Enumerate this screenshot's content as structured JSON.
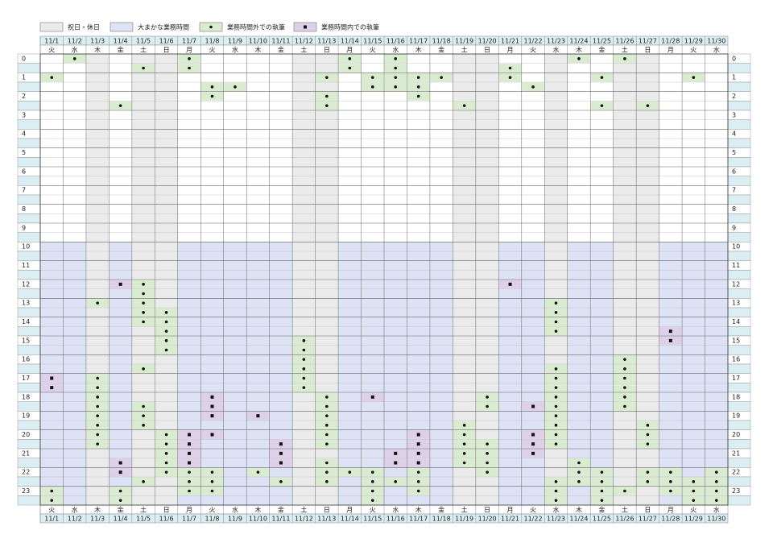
{
  "legend": {
    "holiday": "祝日・休日",
    "work_hours": "大まかな業務時間",
    "outside": "業務時間外での執筆",
    "inside": "業務時間内での執筆"
  },
  "work_hours": [
    10,
    24
  ],
  "hours": [
    0,
    1,
    2,
    3,
    4,
    5,
    6,
    7,
    8,
    9,
    10,
    11,
    12,
    13,
    14,
    15,
    16,
    17,
    18,
    19,
    20,
    21,
    22,
    23
  ],
  "days": [
    {
      "date": "11/1",
      "weekday": "火",
      "holiday": false,
      "outside": [
        1,
        23,
        23.5
      ],
      "inside": [
        17,
        17.5
      ]
    },
    {
      "date": "11/2",
      "weekday": "水",
      "holiday": false,
      "outside": [
        0
      ],
      "inside": []
    },
    {
      "date": "11/3",
      "weekday": "木",
      "holiday": true,
      "outside": [
        13,
        17,
        17.5,
        18,
        18.5,
        19,
        19.5,
        20,
        20.5
      ],
      "inside": []
    },
    {
      "date": "11/4",
      "weekday": "金",
      "holiday": false,
      "outside": [
        2.5,
        23,
        23.5
      ],
      "inside": [
        12,
        21.5,
        22
      ]
    },
    {
      "date": "11/5",
      "weekday": "土",
      "holiday": true,
      "outside": [
        0.5,
        12,
        12.5,
        13,
        13.5,
        14,
        16.5,
        18.5,
        19,
        19.5,
        22.5
      ],
      "inside": []
    },
    {
      "date": "11/6",
      "weekday": "日",
      "holiday": true,
      "outside": [
        13.5,
        14,
        14.5,
        15,
        15.5,
        20,
        20.5,
        21,
        21.5,
        22
      ],
      "inside": []
    },
    {
      "date": "11/7",
      "weekday": "月",
      "holiday": false,
      "outside": [
        0,
        0.5,
        22,
        22.5,
        23
      ],
      "inside": [
        20,
        20.5,
        21,
        21.5
      ]
    },
    {
      "date": "11/8",
      "weekday": "火",
      "holiday": false,
      "outside": [
        1.5,
        2,
        22,
        22.5,
        23
      ],
      "inside": [
        18,
        18.5,
        19,
        20
      ]
    },
    {
      "date": "11/9",
      "weekday": "水",
      "holiday": false,
      "outside": [
        1.5
      ],
      "inside": []
    },
    {
      "date": "11/10",
      "weekday": "木",
      "holiday": false,
      "outside": [
        22
      ],
      "inside": [
        19
      ]
    },
    {
      "date": "11/11",
      "weekday": "金",
      "holiday": false,
      "outside": [
        22.5
      ],
      "inside": [
        20.5,
        21,
        21.5
      ]
    },
    {
      "date": "11/12",
      "weekday": "土",
      "holiday": true,
      "outside": [
        15,
        15.5,
        16,
        16.5,
        17,
        17.5
      ],
      "inside": []
    },
    {
      "date": "11/13",
      "weekday": "日",
      "holiday": true,
      "outside": [
        1,
        2,
        2.5,
        18,
        18.5,
        19,
        19.5,
        20,
        20.5,
        21.5,
        22,
        22.5
      ],
      "inside": []
    },
    {
      "date": "11/14",
      "weekday": "月",
      "holiday": false,
      "outside": [
        0,
        0.5,
        22
      ],
      "inside": []
    },
    {
      "date": "11/15",
      "weekday": "火",
      "holiday": false,
      "outside": [
        1,
        1.5,
        22,
        22.5,
        23,
        23.5
      ],
      "inside": [
        18
      ]
    },
    {
      "date": "11/16",
      "weekday": "水",
      "holiday": false,
      "outside": [
        0,
        0.5,
        1,
        1.5,
        22.5
      ],
      "inside": [
        21,
        21.5
      ]
    },
    {
      "date": "11/17",
      "weekday": "木",
      "holiday": false,
      "outside": [
        1,
        1.5,
        2,
        22,
        22.5,
        23
      ],
      "inside": [
        20,
        20.5,
        21,
        21.5
      ]
    },
    {
      "date": "11/18",
      "weekday": "金",
      "holiday": false,
      "outside": [
        1
      ],
      "inside": []
    },
    {
      "date": "11/19",
      "weekday": "土",
      "holiday": true,
      "outside": [
        2.5,
        19.5,
        20,
        20.5,
        21,
        21.5
      ],
      "inside": []
    },
    {
      "date": "11/20",
      "weekday": "日",
      "holiday": true,
      "outside": [
        18,
        18.5,
        20.5,
        21,
        21.5,
        22
      ],
      "inside": []
    },
    {
      "date": "11/21",
      "weekday": "月",
      "holiday": false,
      "outside": [
        0.5,
        1
      ],
      "inside": [
        12
      ]
    },
    {
      "date": "11/22",
      "weekday": "火",
      "holiday": false,
      "outside": [
        1.5
      ],
      "inside": [
        18.5,
        20,
        20.5,
        21
      ]
    },
    {
      "date": "11/23",
      "weekday": "水",
      "holiday": true,
      "outside": [
        13,
        13.5,
        14,
        14.5,
        16.5,
        17,
        17.5,
        18,
        18.5,
        19,
        19.5,
        20,
        20.5,
        22.5,
        23,
        23.5
      ],
      "inside": []
    },
    {
      "date": "11/24",
      "weekday": "木",
      "holiday": false,
      "outside": [
        0,
        21.5,
        22,
        22.5
      ],
      "inside": []
    },
    {
      "date": "11/25",
      "weekday": "金",
      "holiday": false,
      "outside": [
        1,
        2.5,
        22,
        22.5,
        23,
        23.5
      ],
      "inside": []
    },
    {
      "date": "11/26",
      "weekday": "土",
      "holiday": true,
      "outside": [
        0,
        16,
        16.5,
        17,
        17.5,
        18,
        18.5,
        23
      ],
      "inside": []
    },
    {
      "date": "11/27",
      "weekday": "日",
      "holiday": true,
      "outside": [
        2.5,
        19.5,
        20,
        20.5,
        22,
        22.5
      ],
      "inside": []
    },
    {
      "date": "11/28",
      "weekday": "月",
      "holiday": false,
      "outside": [
        22,
        22.5,
        23
      ],
      "inside": [
        14.5,
        15
      ]
    },
    {
      "date": "11/29",
      "weekday": "火",
      "holiday": false,
      "outside": [
        1,
        22.5,
        23,
        23.5
      ],
      "inside": []
    },
    {
      "date": "11/30",
      "weekday": "水",
      "holiday": false,
      "outside": [
        22,
        22.5,
        23,
        23.5
      ],
      "inside": []
    }
  ]
}
